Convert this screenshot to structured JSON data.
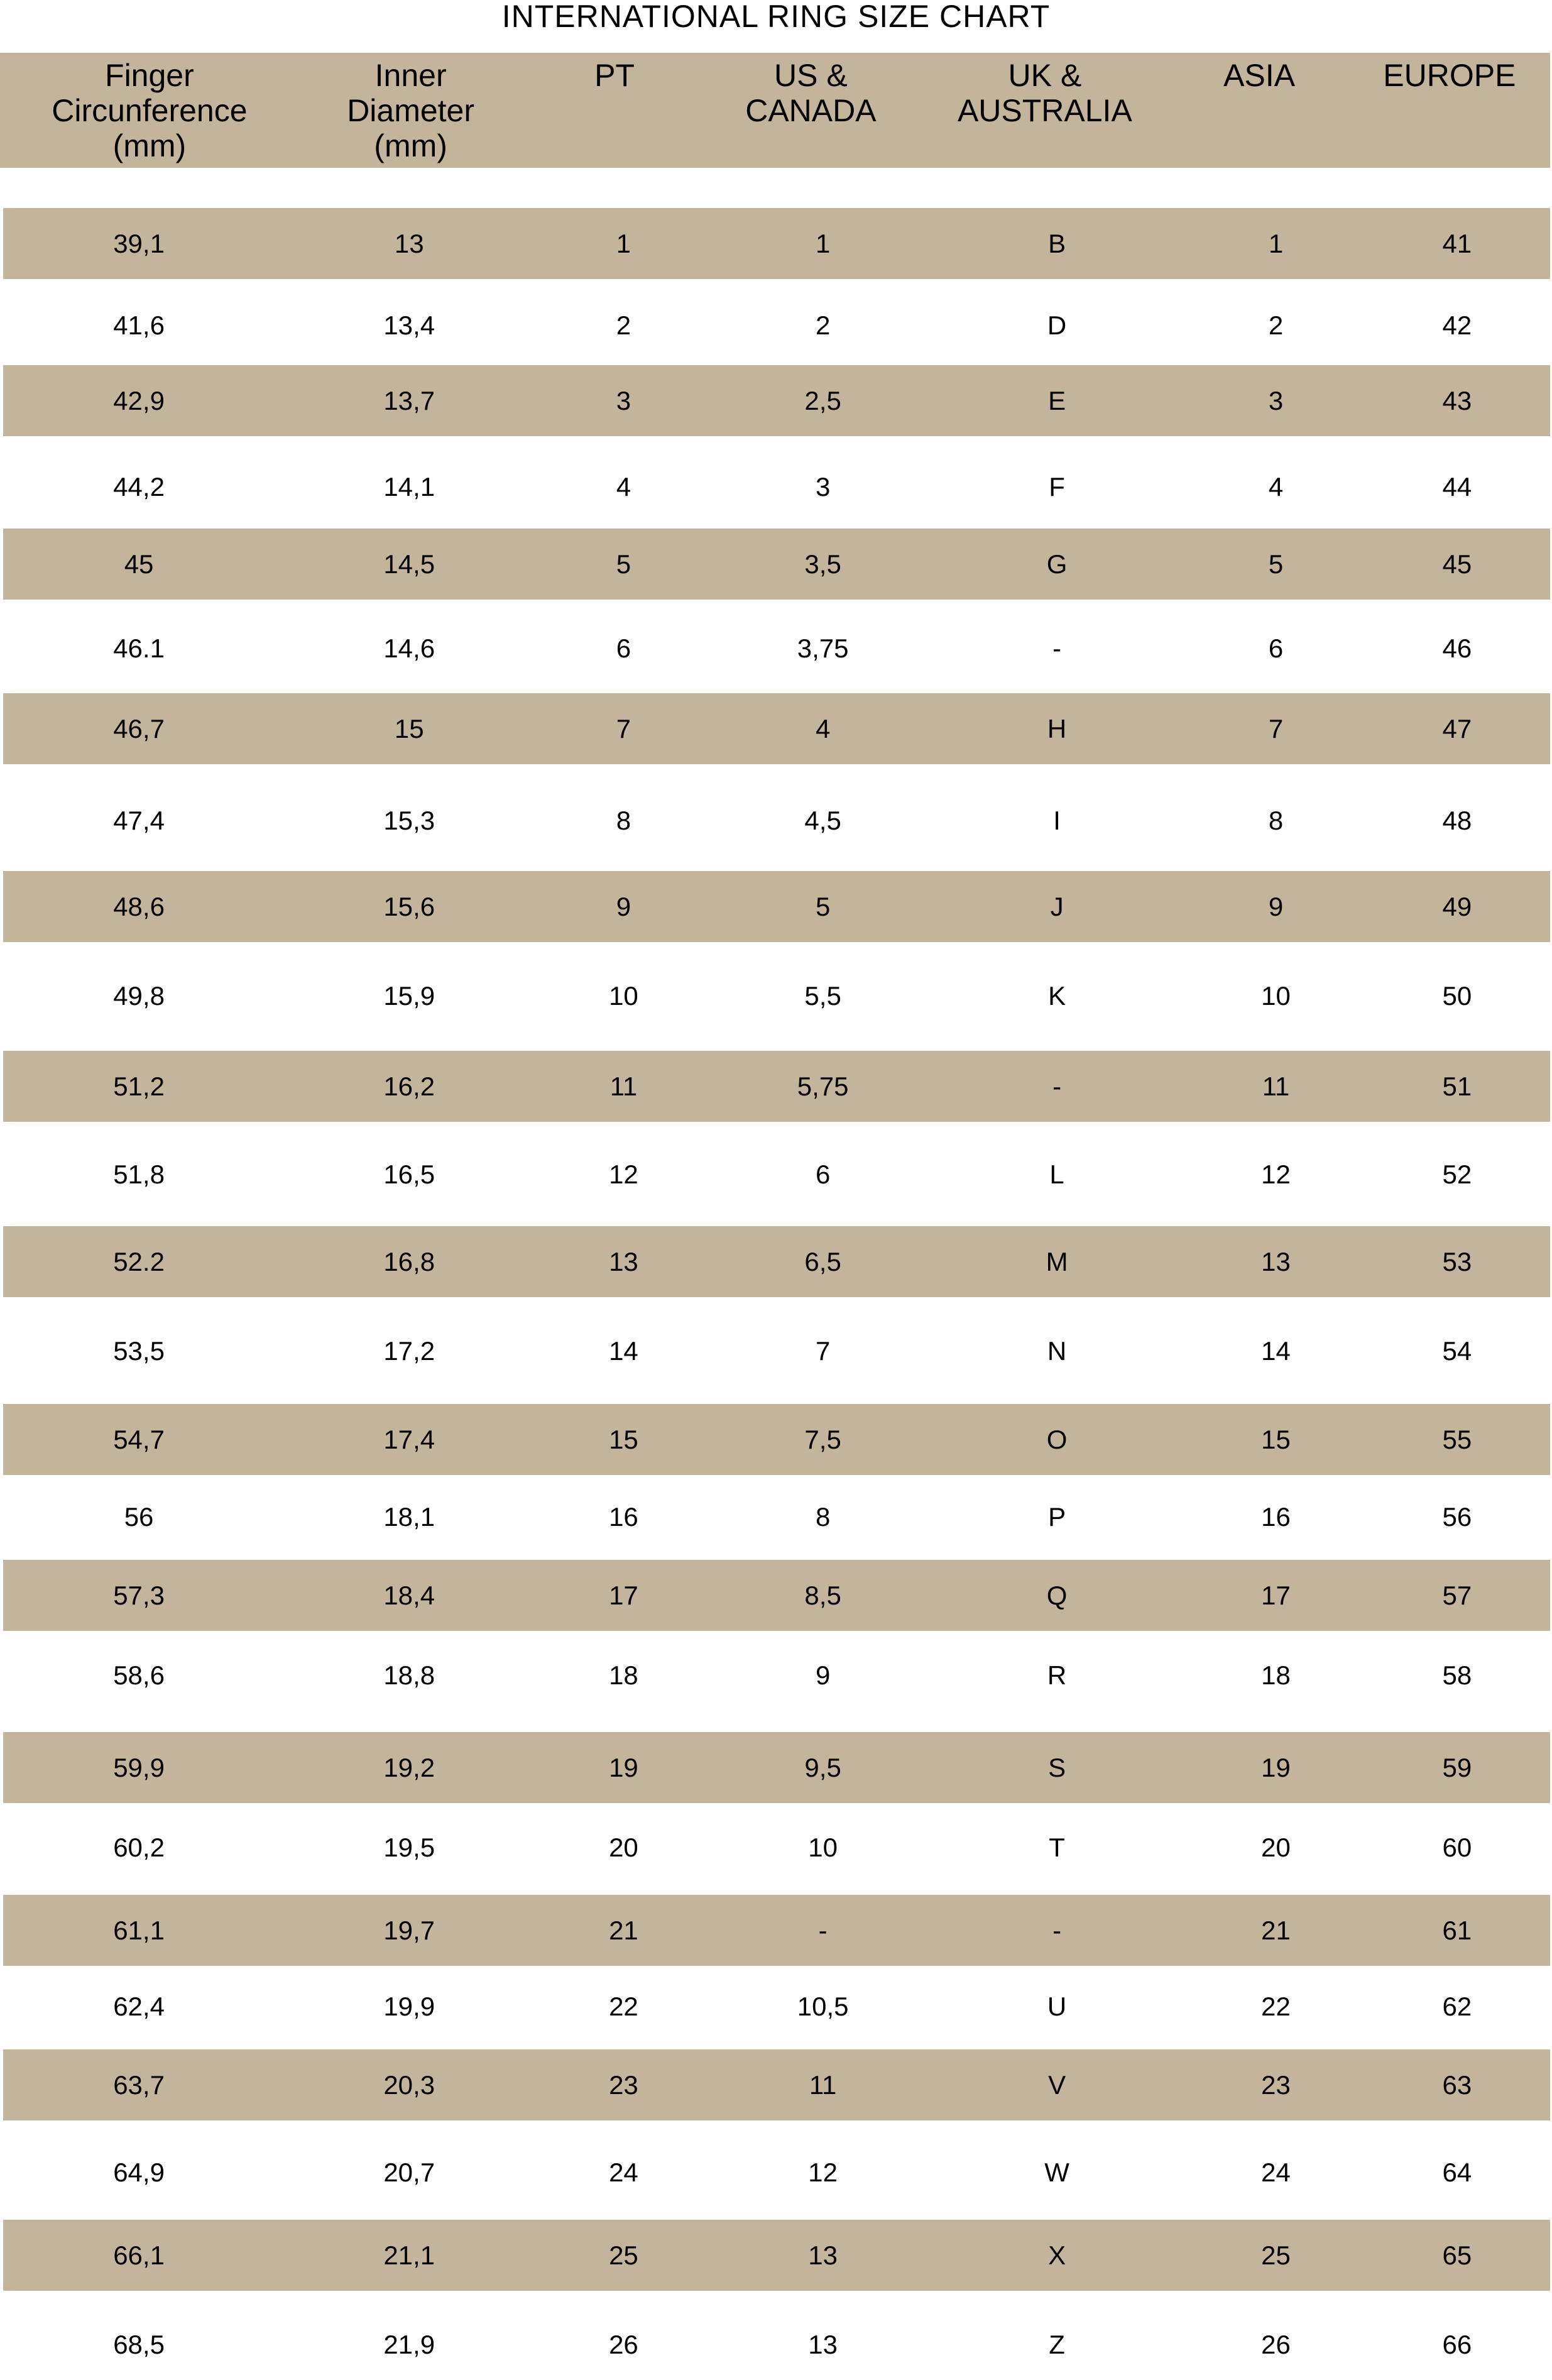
{
  "title": "INTERNATIONAL RING SIZE CHART",
  "colors": {
    "band": "#c3b59c",
    "background": "#ffffff",
    "text": "#000000"
  },
  "columns": [
    "Finger\nCircunference\n(mm)",
    "Inner\nDiameter\n(mm)",
    "PT",
    "US &\nCANADA",
    "UK &\nAUSTRALIA",
    "ASIA",
    "EUROPE"
  ],
  "rows": [
    [
      "39,1",
      "13",
      "1",
      "1",
      "B",
      "1",
      "41"
    ],
    [
      "41,6",
      "13,4",
      "2",
      "2",
      "D",
      "2",
      "42"
    ],
    [
      "42,9",
      "13,7",
      "3",
      "2,5",
      "E",
      "3",
      "43"
    ],
    [
      "44,2",
      "14,1",
      "4",
      "3",
      "F",
      "4",
      "44"
    ],
    [
      "45",
      "14,5",
      "5",
      "3,5",
      "G",
      "5",
      "45"
    ],
    [
      "46.1",
      "14,6",
      "6",
      "3,75",
      "-",
      "6",
      "46"
    ],
    [
      "46,7",
      "15",
      "7",
      "4",
      "H",
      "7",
      "47"
    ],
    [
      "47,4",
      "15,3",
      "8",
      "4,5",
      "I",
      "8",
      "48"
    ],
    [
      "48,6",
      "15,6",
      "9",
      "5",
      "J",
      "9",
      "49"
    ],
    [
      "49,8",
      "15,9",
      "10",
      "5,5",
      "K",
      "10",
      "50"
    ],
    [
      "51,2",
      "16,2",
      "11",
      "5,75",
      "-",
      "11",
      "51"
    ],
    [
      "51,8",
      "16,5",
      "12",
      "6",
      "L",
      "12",
      "52"
    ],
    [
      "52.2",
      "16,8",
      "13",
      "6,5",
      "M",
      "13",
      "53"
    ],
    [
      "53,5",
      "17,2",
      "14",
      "7",
      "N",
      "14",
      "54"
    ],
    [
      "54,7",
      "17,4",
      "15",
      "7,5",
      "O",
      "15",
      "55"
    ],
    [
      "56",
      "18,1",
      "16",
      "8",
      "P",
      "16",
      "56"
    ],
    [
      "57,3",
      "18,4",
      "17",
      "8,5",
      "Q",
      "17",
      "57"
    ],
    [
      "58,6",
      "18,8",
      "18",
      "9",
      "R",
      "18",
      "58"
    ],
    [
      "59,9",
      "19,2",
      "19",
      "9,5",
      "S",
      "19",
      "59"
    ],
    [
      "60,2",
      "19,5",
      "20",
      "10",
      "T",
      "20",
      "60"
    ],
    [
      "61,1",
      "19,7",
      "21",
      "-",
      "-",
      "21",
      "61"
    ],
    [
      "62,4",
      "19,9",
      "22",
      "10,5",
      "U",
      "22",
      "62"
    ],
    [
      "63,7",
      "20,3",
      "23",
      "11",
      "V",
      "23",
      "63"
    ],
    [
      "64,9",
      "20,7",
      "24",
      "12",
      "W",
      "24",
      "64"
    ],
    [
      "66,1",
      "21,1",
      "25",
      "13",
      "X",
      "25",
      "65"
    ],
    [
      "68,5",
      "21,9",
      "26",
      "13",
      "Z",
      "26",
      "66"
    ]
  ]
}
